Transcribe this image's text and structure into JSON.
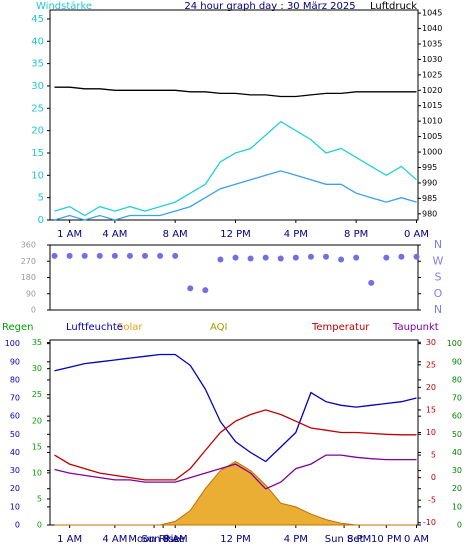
{
  "chart_data": [
    {
      "type": "line",
      "title": "24 hour graph day : 30 März 2025",
      "ylabel": "Windstärke",
      "y2label": "Luftdruck",
      "x": [
        0,
        1,
        2,
        3,
        4,
        5,
        6,
        7,
        8,
        9,
        10,
        11,
        12,
        13,
        14,
        15,
        16,
        17,
        18,
        19,
        20,
        21,
        22,
        23,
        24
      ],
      "xlim": [
        -0.3,
        24.1
      ],
      "xticks": [
        {
          "value": 1,
          "label": "1 AM"
        },
        {
          "value": 4,
          "label": "4 AM"
        },
        {
          "value": 8,
          "label": "8 AM"
        },
        {
          "value": 12,
          "label": "12 PM"
        },
        {
          "value": 16,
          "label": "4 PM"
        },
        {
          "value": 20,
          "label": "8 PM"
        },
        {
          "value": 24,
          "label": "0 AM"
        }
      ],
      "ylim": [
        0,
        47
      ],
      "yticks": [
        0,
        5,
        10,
        15,
        20,
        25,
        30,
        35,
        40,
        45
      ],
      "y2lim": [
        978,
        1046
      ],
      "y2ticks": [
        980,
        985,
        990,
        995,
        1000,
        1005,
        1010,
        1015,
        1020,
        1025,
        1030,
        1035,
        1040,
        1045
      ],
      "series": [
        {
          "color": "#22d0d8",
          "values": [
            2,
            3,
            1,
            3,
            2,
            3,
            2,
            3,
            4,
            6,
            8,
            13,
            15,
            16,
            19,
            22,
            20,
            18,
            15,
            16,
            14,
            12,
            10,
            12,
            9
          ]
        },
        {
          "color": "#3aa0f0",
          "values": [
            0,
            1,
            0,
            1,
            0,
            1,
            1,
            1,
            2,
            3,
            5,
            7,
            8,
            9,
            10,
            11,
            10,
            9,
            8,
            8,
            6,
            5,
            4,
            5,
            4
          ]
        },
        {
          "color": "#000000",
          "axis": "y2",
          "values": [
            1021,
            1021,
            1020.5,
            1020.5,
            1020,
            1020,
            1020,
            1020,
            1020,
            1019.5,
            1019.5,
            1019,
            1019,
            1018.5,
            1018.5,
            1018,
            1018,
            1018.5,
            1019,
            1019,
            1019.5,
            1019.5,
            1019.5,
            1019.5,
            1019.5
          ]
        }
      ]
    },
    {
      "type": "scatter",
      "x": [
        0,
        1,
        2,
        3,
        4,
        5,
        6,
        7,
        8,
        9,
        10,
        11,
        12,
        13,
        14,
        15,
        16,
        17,
        18,
        19,
        20,
        21,
        22,
        23,
        24
      ],
      "xlim": [
        -0.3,
        24.1
      ],
      "ylim": [
        0,
        360
      ],
      "yticks": [
        0,
        90,
        180,
        270,
        360
      ],
      "y2lim": [
        0,
        360
      ],
      "y2ticks": [
        {
          "value": 0,
          "label": "N"
        },
        {
          "value": 90,
          "label": "O"
        },
        {
          "value": 180,
          "label": "S"
        },
        {
          "value": 270,
          "label": "W"
        },
        {
          "value": 360,
          "label": "N"
        }
      ],
      "series": [
        {
          "color": "#7070e0",
          "values": [
            300,
            300,
            300,
            300,
            300,
            300,
            300,
            300,
            300,
            120,
            110,
            280,
            290,
            285,
            290,
            285,
            290,
            295,
            295,
            280,
            290,
            150,
            290,
            295,
            295
          ]
        }
      ]
    },
    {
      "type": "line",
      "y3label": "Regen",
      "y4label": "AQI",
      "x": [
        0,
        1,
        2,
        3,
        4,
        5,
        6,
        7,
        8,
        9,
        10,
        11,
        12,
        13,
        14,
        15,
        16,
        17,
        18,
        19,
        20,
        21,
        22,
        23,
        24
      ],
      "xlim": [
        -0.3,
        24.1
      ],
      "xticks": [
        {
          "value": 1,
          "label": "1 AM"
        },
        {
          "value": 4,
          "label": "4 AM"
        },
        {
          "value": 6.6,
          "label": "Moon Rise"
        },
        {
          "value": 7.2,
          "label": "Sun Rise"
        },
        {
          "value": 8,
          "label": "8 AM"
        },
        {
          "value": 12,
          "label": "12 PM"
        },
        {
          "value": 16,
          "label": "4 PM"
        },
        {
          "value": 19.2,
          "label": "Sun Set"
        },
        {
          "value": 20.2,
          "label": "8 PM"
        },
        {
          "value": 22,
          "label": "10 PM"
        },
        {
          "value": 24,
          "label": "0 AM"
        }
      ],
      "ylim": [
        0,
        102
      ],
      "yticks": [
        0,
        10,
        20,
        30,
        40,
        50,
        60,
        70,
        80,
        90,
        100
      ],
      "y2lim": [
        -10.5,
        30.5
      ],
      "y2ticks": [
        -10,
        -5,
        0,
        5,
        10,
        15,
        20,
        25,
        30
      ],
      "y3lim": [
        0,
        35.5
      ],
      "y3ticks": [
        0,
        5,
        10,
        15,
        20,
        25,
        30,
        35
      ],
      "y4lim": [
        0,
        102
      ],
      "y4ticks": [
        0,
        10,
        20,
        30,
        40,
        50,
        60,
        70,
        80,
        90,
        100
      ],
      "series": [
        {
          "name": "Solar",
          "color": "#e8a010",
          "style": "area",
          "values": [
            0,
            0,
            0,
            0,
            0,
            0,
            0,
            0,
            2,
            8,
            20,
            30,
            35,
            30,
            22,
            12,
            10,
            6,
            3,
            1,
            0,
            0,
            0,
            0,
            0
          ]
        },
        {
          "name": "Luftfeuchte",
          "color": "#0000c0",
          "values": [
            85,
            87,
            89,
            90,
            91,
            92,
            93,
            94,
            94,
            88,
            75,
            57,
            46,
            40,
            35,
            43,
            51,
            73,
            68,
            66,
            65,
            66,
            67,
            68,
            70
          ]
        },
        {
          "name": "Temperatur",
          "color": "#c00000",
          "axis": "y2",
          "values": [
            5,
            3,
            2,
            1,
            0.5,
            0,
            -0.5,
            -0.5,
            -0.5,
            2,
            6,
            10,
            12.5,
            14,
            15,
            14,
            12.5,
            11,
            10.5,
            10,
            10,
            9.8,
            9.6,
            9.5,
            9.5
          ]
        },
        {
          "name": "Taupunkt",
          "color": "#8000a0",
          "axis": "y2",
          "values": [
            1.8,
            1,
            0.5,
            0,
            -0.5,
            -0.5,
            -1,
            -1,
            -1,
            0,
            1,
            2,
            3,
            1,
            -2.5,
            -1,
            2,
            3,
            5,
            5,
            4.5,
            4.2,
            4,
            4,
            4
          ]
        }
      ]
    }
  ]
}
